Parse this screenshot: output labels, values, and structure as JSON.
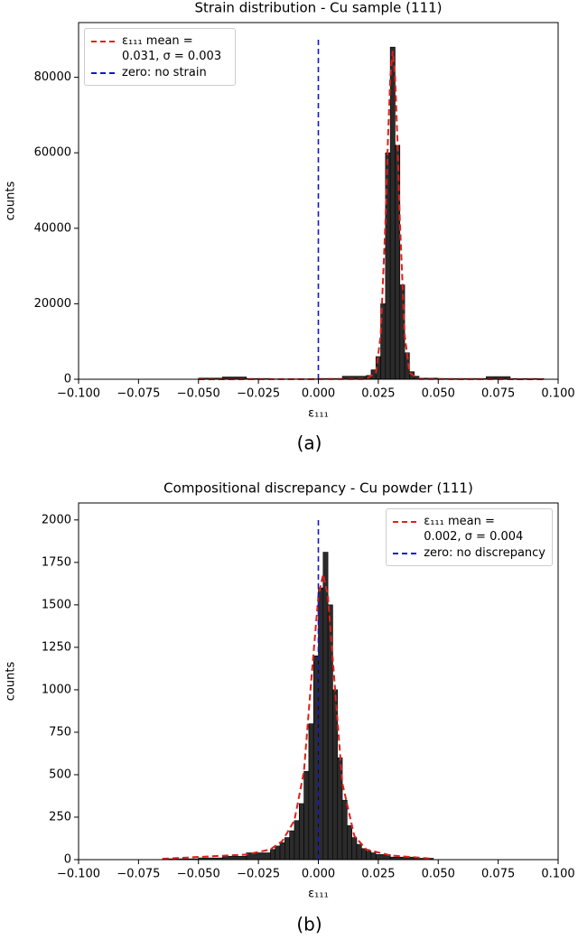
{
  "chart_data": [
    {
      "type": "histogram",
      "title": "Strain distribution - Cu sample (111)",
      "x_label": "ε₁₁₁",
      "y_label": "counts",
      "caption": "(a)",
      "bins": [
        -0.05,
        -0.04,
        -0.03,
        -0.02,
        -0.01,
        0.0,
        0.01,
        0.02,
        0.022,
        0.024,
        0.026,
        0.028,
        0.03,
        0.032,
        0.034,
        0.036,
        0.038,
        0.04,
        0.042,
        0.05,
        0.06,
        0.07,
        0.08,
        0.094
      ],
      "counts": [
        300,
        600,
        200,
        100,
        100,
        200,
        800,
        1000,
        2500,
        6000,
        20000,
        60000,
        88000,
        62000,
        25000,
        7000,
        2000,
        800,
        300,
        200,
        200,
        700,
        200
      ],
      "color": "#2b2b2b",
      "edgecolor": "#000000",
      "fit": {
        "name": "ε₁₁₁ mean = 0.031, σ = 0.003",
        "color": "#e0201b",
        "x": [
          -0.05,
          0.02,
          0.024,
          0.026,
          0.028,
          0.029,
          0.03,
          0.031,
          0.032,
          0.033,
          0.034,
          0.036,
          0.038,
          0.042,
          0.094
        ],
        "values": [
          0,
          60,
          1700,
          11700,
          42000,
          63000,
          80000,
          87000,
          80000,
          63000,
          42000,
          11700,
          1700,
          60,
          0
        ]
      },
      "reference_line": {
        "name": "zero: no strain",
        "color": "#1515c8",
        "x": 0,
        "y": [
          0,
          90000
        ]
      },
      "xlim": [
        -0.1,
        0.1
      ],
      "xticks": [
        {
          "value": -0.1,
          "label": "−0.100"
        },
        {
          "value": -0.075,
          "label": "−0.075"
        },
        {
          "value": -0.05,
          "label": "−0.050"
        },
        {
          "value": -0.025,
          "label": "−0.025"
        },
        {
          "value": 0,
          "label": "0.000"
        },
        {
          "value": 0.025,
          "label": "0.025"
        },
        {
          "value": 0.05,
          "label": "0.050"
        },
        {
          "value": 0.075,
          "label": "0.075"
        },
        {
          "value": 0.1,
          "label": "0.100"
        }
      ],
      "ylim": [
        0,
        94500
      ],
      "yticks": [
        0,
        20000,
        40000,
        60000,
        80000
      ],
      "legend": "upper left"
    },
    {
      "type": "histogram",
      "title": "Compositional discrepancy - Cu powder (111)",
      "x_label": "ε₁₁₁",
      "y_label": "counts",
      "caption": "(b)",
      "bins": [
        -0.065,
        -0.05,
        -0.04,
        -0.03,
        -0.02,
        -0.018,
        -0.016,
        -0.014,
        -0.012,
        -0.01,
        -0.008,
        -0.006,
        -0.004,
        -0.002,
        0.0,
        0.002,
        0.004,
        0.006,
        0.008,
        0.01,
        0.012,
        0.014,
        0.016,
        0.018,
        0.02,
        0.022,
        0.024,
        0.03,
        0.04,
        0.048
      ],
      "counts": [
        5,
        10,
        20,
        40,
        60,
        80,
        100,
        130,
        170,
        230,
        330,
        520,
        800,
        1200,
        1600,
        1810,
        1500,
        1000,
        600,
        350,
        200,
        130,
        90,
        65,
        50,
        40,
        30,
        15,
        8
      ],
      "color": "#2b2b2b",
      "edgecolor": "#000000",
      "fit": {
        "name": "ε₁₁₁ mean = 0.002, σ = 0.004",
        "color": "#e0201b",
        "x": [
          -0.065,
          -0.03,
          -0.02,
          -0.015,
          -0.01,
          -0.006,
          -0.003,
          0,
          0.002,
          0.004,
          0.007,
          0.01,
          0.015,
          0.02,
          0.03,
          0.048
        ],
        "values": [
          5,
          30,
          60,
          110,
          230,
          520,
          1050,
          1550,
          1680,
          1550,
          1000,
          450,
          140,
          60,
          25,
          5
        ]
      },
      "reference_line": {
        "name": "zero: no discrepancy",
        "color": "#1515c8",
        "x": 0,
        "y": [
          0,
          2000
        ]
      },
      "xlim": [
        -0.1,
        0.1
      ],
      "xticks": [
        {
          "value": -0.1,
          "label": "−0.100"
        },
        {
          "value": -0.075,
          "label": "−0.075"
        },
        {
          "value": -0.05,
          "label": "−0.050"
        },
        {
          "value": -0.025,
          "label": "−0.025"
        },
        {
          "value": 0,
          "label": "0.000"
        },
        {
          "value": 0.025,
          "label": "0.025"
        },
        {
          "value": 0.05,
          "label": "0.050"
        },
        {
          "value": 0.075,
          "label": "0.075"
        },
        {
          "value": 0.1,
          "label": "0.100"
        }
      ],
      "ylim": [
        0,
        2100
      ],
      "yticks": [
        0,
        250,
        500,
        750,
        1000,
        1250,
        1500,
        1750,
        2000
      ],
      "legend": "upper right"
    }
  ]
}
